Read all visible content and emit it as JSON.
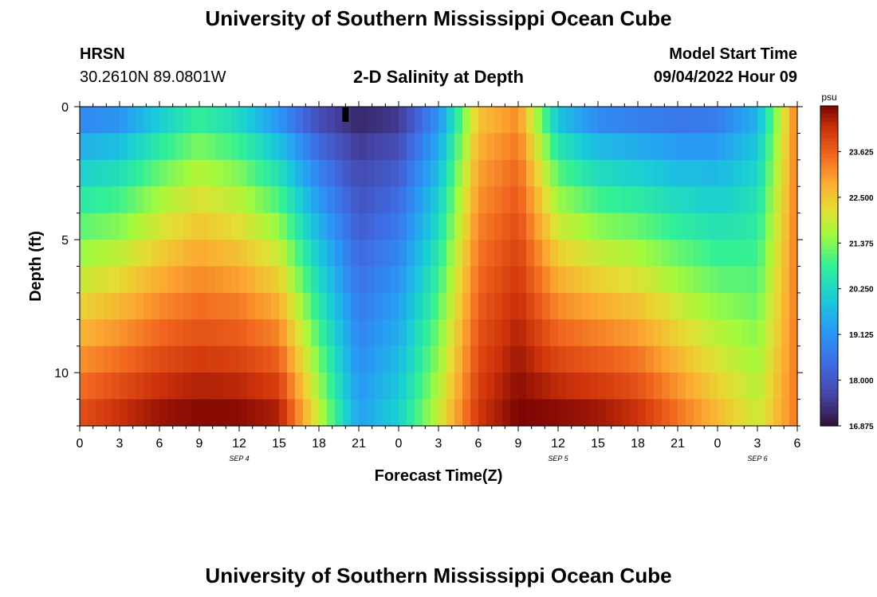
{
  "header": {
    "title": "University of Southern Mississippi Ocean Cube",
    "station": "HRSN",
    "coords": "30.2610N  89.0801W",
    "subtitle": "2-D Salinity at Depth",
    "model_start_label": "Model Start Time",
    "model_start_value": "09/04/2022 Hour 09"
  },
  "footer": {
    "title": "University of Southern Mississippi Ocean Cube"
  },
  "chart_data": {
    "type": "heatmap",
    "title": "2-D Salinity at Depth",
    "xlabel": "Forecast Time(Z)",
    "ylabel": "Depth (ft)",
    "x_range_hours": [
      0,
      54
    ],
    "x_ticks": [
      {
        "h": 0,
        "label": "0"
      },
      {
        "h": 3,
        "label": "3"
      },
      {
        "h": 6,
        "label": "6"
      },
      {
        "h": 9,
        "label": "9"
      },
      {
        "h": 12,
        "label": "12"
      },
      {
        "h": 15,
        "label": "15"
      },
      {
        "h": 18,
        "label": "18"
      },
      {
        "h": 21,
        "label": "21"
      },
      {
        "h": 24,
        "label": "0"
      },
      {
        "h": 27,
        "label": "3"
      },
      {
        "h": 30,
        "label": "6"
      },
      {
        "h": 33,
        "label": "9"
      },
      {
        "h": 36,
        "label": "12"
      },
      {
        "h": 39,
        "label": "15"
      },
      {
        "h": 42,
        "label": "18"
      },
      {
        "h": 45,
        "label": "21"
      },
      {
        "h": 48,
        "label": "0"
      },
      {
        "h": 51,
        "label": "3"
      },
      {
        "h": 54,
        "label": "6"
      }
    ],
    "date_labels": [
      {
        "h": 12,
        "label": "SEP 4"
      },
      {
        "h": 36,
        "label": "SEP 5"
      },
      {
        "h": 51,
        "label": "SEP 6"
      }
    ],
    "y_range_ft": [
      0,
      12
    ],
    "y_ticks": [
      0,
      5,
      10
    ],
    "colorbar": {
      "unit": "psu",
      "min": 16.875,
      "max": 24.75,
      "tick_labels": [
        "23.625",
        "22.500",
        "21.375",
        "20.250",
        "19.125",
        "18.000",
        "16.875"
      ]
    },
    "salinity_profile_psu": {
      "depth_ft": [
        0,
        1,
        2,
        3,
        4,
        5,
        6,
        7,
        8,
        9,
        10,
        11,
        12
      ],
      "hours": [
        0,
        3,
        6,
        9,
        12,
        15,
        18,
        21,
        24,
        27,
        30,
        33,
        36,
        39,
        42,
        45,
        48,
        51,
        54
      ],
      "surface": [
        18.4,
        18.6,
        19.6,
        20.4,
        19.8,
        18.6,
        17.4,
        17.0,
        17.2,
        18.8,
        22.4,
        23.0,
        19.4,
        18.4,
        18.2,
        18.1,
        18.3,
        19.4,
        23.4
      ],
      "bottom": [
        24.0,
        24.4,
        24.7,
        24.8,
        24.8,
        24.6,
        22.0,
        19.4,
        20.2,
        22.0,
        24.2,
        24.8,
        24.8,
        24.7,
        24.4,
        23.6,
        22.8,
        22.0,
        23.4
      ]
    }
  }
}
